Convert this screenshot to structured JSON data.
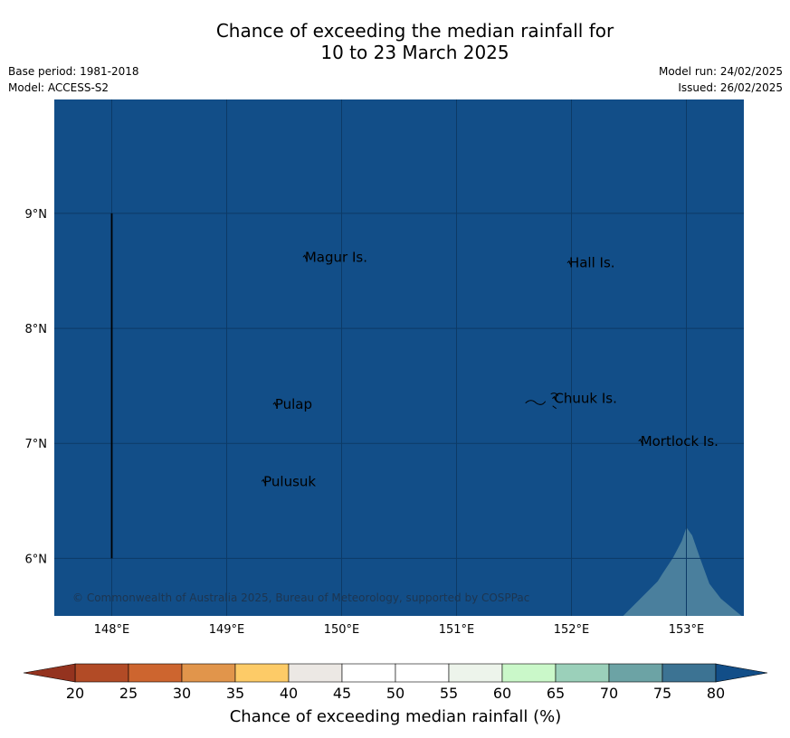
{
  "title_line1": "Chance of exceeding the median rainfall for",
  "title_line2": "10 to 23 March 2025",
  "base_period": "Base period: 1981-2018",
  "model": "Model: ACCESS-S2",
  "model_run": "Model run: 24/02/2025",
  "issued": "Issued: 26/02/2025",
  "copyright": "© Commonwealth of Australia 2025, Bureau of Meteorology, supported by COSPPac",
  "map": {
    "lon_range": [
      147.5,
      153.5
    ],
    "lat_range": [
      5.5,
      9.99
    ],
    "background_color": "#124e88",
    "gridlines": true,
    "lon_ticks": [
      {
        "value": 148,
        "label": "148°E"
      },
      {
        "value": 149,
        "label": "149°E"
      },
      {
        "value": 150,
        "label": "150°E"
      },
      {
        "value": 151,
        "label": "151°E"
      },
      {
        "value": 152,
        "label": "152°E"
      },
      {
        "value": 153,
        "label": "153°E"
      }
    ],
    "lat_ticks": [
      {
        "value": 9,
        "label": "9°N"
      },
      {
        "value": 8,
        "label": "8°N"
      },
      {
        "value": 7,
        "label": "7°N"
      },
      {
        "value": 6,
        "label": "6°N"
      }
    ],
    "places": [
      {
        "name": "Magur Is.",
        "lon": 149.68,
        "lat": 8.58
      },
      {
        "name": "Hall Is.",
        "lon": 151.98,
        "lat": 8.53
      },
      {
        "name": "Pulap",
        "lon": 149.42,
        "lat": 7.3
      },
      {
        "name": "Chuuk Is.",
        "lon": 151.85,
        "lat": 7.35
      },
      {
        "name": "Mortlock Is.",
        "lon": 152.6,
        "lat": 6.98
      },
      {
        "name": "Pulusuk",
        "lon": 149.32,
        "lat": 6.63
      }
    ]
  },
  "colorbar": {
    "title": "Chance of exceeding median rainfall (%)",
    "ticks": [
      "20",
      "25",
      "30",
      "35",
      "40",
      "45",
      "50",
      "55",
      "60",
      "65",
      "70",
      "75",
      "80"
    ],
    "colors": [
      "#b24b26",
      "#cd652f",
      "#e1954b",
      "#fdcb67",
      "#ece8e4",
      "#ffffff",
      "#ffffff",
      "#edf4eb",
      "#caf8c9",
      "#9bd0ba",
      "#6ca3a5",
      "#3c7393"
    ],
    "under_color": "#94331f",
    "over_color": "#124e88"
  }
}
